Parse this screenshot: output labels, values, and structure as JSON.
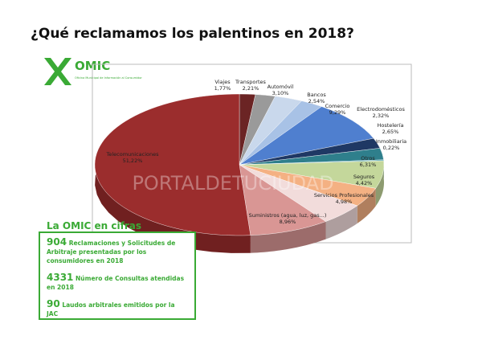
{
  "title": "¿Qué reclamamos los palentinos en 2018?",
  "logo": {
    "name": "OMIC",
    "subtitle": "Oficina Municipal de Información al Consumidor"
  },
  "watermark": "PORTALDETUCIUDAD",
  "chart_data": {
    "type": "pie",
    "categories": [
      "Viajes",
      "Transportes",
      "Automóvil",
      "Bancos",
      "Comercio",
      "Electrodomésticos",
      "Hostelería",
      "Inmobiliaria",
      "Otros",
      "Seguros",
      "Servicios Profesionales",
      "Suministros (agua, luz, gas...)",
      "Telecomunicaciones"
    ],
    "values": [
      1.77,
      2.21,
      3.1,
      2.54,
      9.29,
      2.32,
      2.65,
      0.22,
      6.31,
      4.42,
      4.98,
      8.96,
      51.22
    ],
    "value_labels": [
      "1,77%",
      "2,21%",
      "3,10%",
      "2,54%",
      "9,29%",
      "2,32%",
      "2,65%",
      "0,22%",
      "6,31%",
      "4,42%",
      "4,98%",
      "8,96%",
      "51,22%"
    ],
    "colors": [
      "#6b2424",
      "#9a9a9a",
      "#c9d8ec",
      "#a8c2e6",
      "#4f7fcf",
      "#1f3864",
      "#2f7f8c",
      "#4aa0ad",
      "#c4d79b",
      "#f4b183",
      "#f2dcdb",
      "#d99694",
      "#9b2d2d"
    ]
  },
  "stats": {
    "heading": "La OMIC en cifras",
    "items": [
      {
        "number": "904",
        "text": "Reclamaciones y Solicitudes de Arbitraje presentadas por los consumidores en 2018"
      },
      {
        "number": "4331",
        "text": "Número de Consultas atendidas en 2018"
      },
      {
        "number": "90",
        "text": "Laudos arbitrales emitidos por la JAC"
      }
    ]
  }
}
